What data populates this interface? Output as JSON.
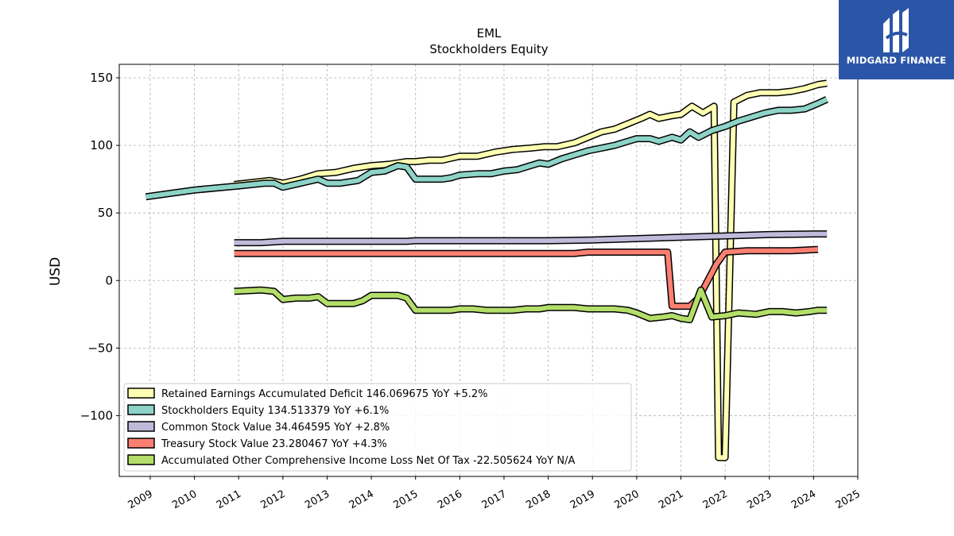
{
  "chart_data": {
    "type": "line",
    "title": "EML",
    "subtitle": "Stockholders  Equity",
    "xlabel": "",
    "ylabel": "USD",
    "xlim": [
      2008.3,
      2025.0
    ],
    "ylim": [
      -145,
      160
    ],
    "x_ticks": [
      2009,
      2010,
      2011,
      2012,
      2013,
      2014,
      2015,
      2016,
      2017,
      2018,
      2019,
      2020,
      2021,
      2022,
      2023,
      2024,
      2025
    ],
    "y_ticks": [
      150,
      100,
      50,
      0,
      -50,
      -100
    ],
    "y_tick_labels": [
      "150",
      "100",
      "50",
      "0",
      "−50",
      "−100"
    ],
    "grid": true,
    "legend_position": "lower-left",
    "series": [
      {
        "name": "Retained Earnings Accumulated Deficit  146.069675 YoY +5.2%",
        "color": "#ffffb3",
        "x": [
          2010.9,
          2011.7,
          2012.0,
          2012.4,
          2012.8,
          2013.2,
          2013.6,
          2014.0,
          2014.4,
          2014.8,
          2015.0,
          2015.3,
          2015.6,
          2016.0,
          2016.4,
          2016.8,
          2017.2,
          2017.6,
          2017.9,
          2018.2,
          2018.6,
          2018.9,
          2019.2,
          2019.5,
          2019.8,
          2020.1,
          2020.3,
          2020.5,
          2020.8,
          2021.0,
          2021.25,
          2021.5,
          2021.75,
          2021.85,
          2022.0,
          2022.2,
          2022.5,
          2022.8,
          2023.2,
          2023.5,
          2023.8,
          2024.1,
          2024.3
        ],
        "y": [
          71,
          74,
          72,
          75,
          79,
          80,
          83,
          85,
          86,
          88,
          88,
          89,
          89,
          92,
          92,
          95,
          97,
          98,
          99,
          99,
          102,
          106,
          110,
          112,
          116,
          120,
          123,
          120,
          122,
          123,
          129,
          124,
          129,
          -131,
          -131,
          132,
          137,
          139,
          139,
          140,
          142,
          145,
          146
        ]
      },
      {
        "name": "Stockholders Equity  134.513379 YoY +6.1%",
        "color": "#8dd3c7",
        "x": [
          2008.9,
          2010.0,
          2011.0,
          2011.6,
          2011.8,
          2012.0,
          2012.4,
          2012.8,
          2013.0,
          2013.3,
          2013.7,
          2014.0,
          2014.3,
          2014.6,
          2014.8,
          2015.0,
          2015.3,
          2015.6,
          2015.8,
          2016.0,
          2016.4,
          2016.7,
          2017.0,
          2017.3,
          2017.6,
          2017.8,
          2018.0,
          2018.3,
          2018.6,
          2018.9,
          2019.2,
          2019.5,
          2019.8,
          2020.0,
          2020.3,
          2020.5,
          2020.8,
          2021.0,
          2021.2,
          2021.4,
          2021.7,
          2022.0,
          2022.3,
          2022.6,
          2022.9,
          2023.2,
          2023.5,
          2023.8,
          2024.1,
          2024.3
        ],
        "y": [
          62,
          67,
          70,
          72,
          72,
          69,
          72,
          75,
          72,
          72,
          74,
          80,
          81,
          85,
          84,
          75,
          75,
          75,
          76,
          78,
          79,
          79,
          81,
          82,
          85,
          87,
          86,
          90,
          93,
          96,
          98,
          100,
          103,
          105,
          105,
          103,
          106,
          104,
          110,
          106,
          111,
          114,
          118,
          121,
          124,
          126,
          126,
          127,
          131,
          134
        ]
      },
      {
        "name": "Common Stock Value  34.464595 YoY +2.8%",
        "color": "#bebada",
        "x": [
          2010.9,
          2011.5,
          2012.0,
          2014.8,
          2015.0,
          2018.0,
          2019.0,
          2020.0,
          2021.0,
          2022.0,
          2023.0,
          2024.0,
          2024.3
        ],
        "y": [
          28,
          28,
          29,
          29,
          29.5,
          29.5,
          30,
          31,
          32,
          33,
          34,
          34.5,
          34.5
        ]
      },
      {
        "name": "Treasury Stock Value  23.280467 YoY +4.3%",
        "color": "#fb8072",
        "x": [
          2010.9,
          2018.6,
          2018.9,
          2020.5,
          2020.7,
          2020.8,
          2021.0,
          2021.2,
          2021.4,
          2021.8,
          2022.0,
          2022.5,
          2023.0,
          2023.5,
          2024.1
        ],
        "y": [
          20,
          20,
          21,
          21,
          21,
          -19,
          -19,
          -19,
          -13,
          12,
          21,
          22,
          22,
          22,
          23
        ]
      },
      {
        "name": "Accumulated Other Comprehensive Income Loss Net Of Tax  -22.505624 YoY N/A",
        "color": "#b3de69",
        "x": [
          2010.9,
          2011.5,
          2011.8,
          2012.0,
          2012.3,
          2012.6,
          2012.8,
          2013.0,
          2013.3,
          2013.6,
          2013.8,
          2014.0,
          2014.3,
          2014.6,
          2014.8,
          2015.0,
          2015.3,
          2015.6,
          2015.8,
          2016.0,
          2016.3,
          2016.6,
          2016.9,
          2017.2,
          2017.5,
          2017.8,
          2018.0,
          2018.3,
          2018.6,
          2018.9,
          2019.2,
          2019.5,
          2019.8,
          2020.0,
          2020.3,
          2020.6,
          2020.8,
          2021.0,
          2021.2,
          2021.45,
          2021.7,
          2022.0,
          2022.3,
          2022.7,
          2023.0,
          2023.3,
          2023.6,
          2023.9,
          2024.1,
          2024.3
        ],
        "y": [
          -8,
          -7,
          -8,
          -14,
          -13,
          -13,
          -12,
          -17,
          -17,
          -17,
          -15,
          -11,
          -11,
          -11,
          -13,
          -22,
          -22,
          -22,
          -22,
          -21,
          -21,
          -22,
          -22,
          -22,
          -21,
          -21,
          -20,
          -20,
          -20,
          -21,
          -21,
          -21,
          -22,
          -24,
          -28,
          -27,
          -26,
          -28,
          -29,
          -7,
          -27,
          -26,
          -24,
          -25,
          -23,
          -23,
          -24,
          -23,
          -22,
          -22
        ]
      }
    ]
  },
  "logo": {
    "text": "MIDGARD FINANCE"
  }
}
